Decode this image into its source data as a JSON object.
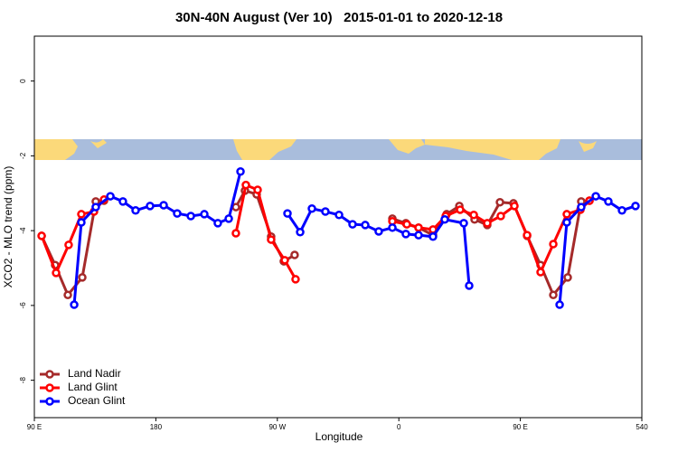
{
  "chart_data": {
    "type": "line",
    "title": "30N-40N August (Ver 10)   2015-01-01 to 2020-12-18",
    "x_label": "Longitude",
    "y_label": "XCO2 - MLO trend (ppm)",
    "xlim": [
      90,
      540
    ],
    "ylim": [
      -9,
      1.2
    ],
    "xticks": [
      {
        "value": 90,
        "label": "90 E"
      },
      180,
      {
        "value": 270,
        "label": "90 W"
      },
      {
        "value": 360,
        "label": "0"
      },
      {
        "value": 450,
        "label": "90 E"
      },
      540
    ],
    "yticks": [
      0,
      -2,
      -4,
      -6,
      -8
    ],
    "legend": "bottom-left",
    "series": [
      {
        "name": "Land Nadir",
        "color": "#a52a2a",
        "x": [
          95.4,
          105.4,
          114.8,
          125.5,
          135.5,
          141.6,
          null,
          239.3,
          246,
          254.7,
          265.4,
          274.8,
          282.8,
          null,
          355.2,
          365.2,
          374.6,
          385.3,
          395.4,
          404.8,
          416.1,
          425.5,
          434.9,
          444.9,
          455,
          465,
          474.4,
          485.1,
          495.1,
          501.2
        ],
        "values": [
          -4.14,
          -4.92,
          -5.72,
          -5.25,
          -3.22,
          -3.2,
          null,
          -3.37,
          -2.93,
          -3.03,
          -4.16,
          -4.82,
          -4.65,
          null,
          -3.68,
          -3.8,
          -3.92,
          -4.12,
          -3.56,
          -3.34,
          -3.7,
          -3.85,
          -3.24,
          -3.27,
          -4.14,
          -4.92,
          -5.72,
          -5.25,
          -3.22,
          -3.2
        ]
      },
      {
        "name": "Land Glint",
        "color": "#ff0000",
        "x": [
          95.4,
          106.1,
          115.4,
          124.8,
          134.2,
          141.6,
          null,
          239.3,
          246.7,
          255.4,
          265.4,
          275.5,
          283.5,
          null,
          355.2,
          365.9,
          374.6,
          385.3,
          394.7,
          405.4,
          415.5,
          425.5,
          435.5,
          445.6,
          455,
          465,
          474.4,
          484.4,
          494.5,
          501.2
        ],
        "values": [
          -4.14,
          -5.13,
          -4.38,
          -3.56,
          -3.49,
          -3.17,
          null,
          -4.07,
          -2.78,
          -2.91,
          -4.24,
          -4.79,
          -5.3,
          null,
          -3.75,
          -3.83,
          -3.92,
          -3.97,
          -3.61,
          -3.44,
          -3.58,
          -3.8,
          -3.61,
          -3.34,
          -4.12,
          -5.11,
          -4.36,
          -3.56,
          -3.44,
          -3.2
        ]
      },
      {
        "name": "Ocean Glint",
        "color": "#0000ff",
        "x": [
          119.5,
          124.8,
          135.5,
          146.3,
          155.6,
          165,
          175.7,
          185.8,
          195.8,
          205.9,
          215.9,
          225.9,
          234,
          242.7,
          null,
          277.5,
          286.9,
          295.6,
          305.6,
          315.7,
          325.7,
          335.1,
          345.1,
          355.2,
          365.2,
          374.6,
          385.3,
          394,
          408.1,
          412.1,
          null,
          479.1,
          484.4,
          495.1,
          505.9,
          515.2,
          525.3,
          535.3
        ],
        "values": [
          -5.98,
          -3.78,
          -3.37,
          -3.08,
          -3.22,
          -3.46,
          -3.34,
          -3.32,
          -3.54,
          -3.61,
          -3.56,
          -3.8,
          -3.68,
          -2.42,
          null,
          -3.54,
          -4.04,
          -3.41,
          -3.49,
          -3.58,
          -3.83,
          -3.85,
          -4.02,
          -3.92,
          -4.09,
          -4.12,
          -4.16,
          -3.7,
          -3.8,
          -5.47,
          null,
          -5.98,
          -3.78,
          -3.37,
          -3.08,
          -3.22,
          -3.46,
          -3.34
        ]
      }
    ]
  }
}
